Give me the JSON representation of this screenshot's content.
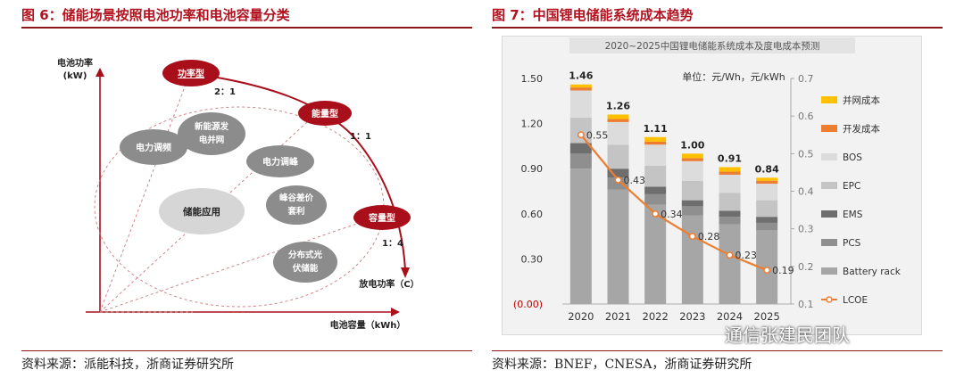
{
  "figure6": {
    "title": "图 6：储能场景按照电池功率和电池容量分类",
    "source": "资料来源：派能科技，浙商证券研究所",
    "y_axis_label_1": "电池功率",
    "y_axis_label_2": "(kW)",
    "x_axis_label": "电池容量（kWh）",
    "curve_label": "放电功率（C）",
    "types": [
      {
        "label": "功率型",
        "ratio": "2：1"
      },
      {
        "label": "能量型",
        "ratio": "1：1"
      },
      {
        "label": "容量型",
        "ratio": "1：4"
      }
    ],
    "applications": {
      "grid_frequency": "电力调频",
      "renewable_line1": "新能源发",
      "renewable_line2": "电并网",
      "peak_shaving": "电力调峰",
      "storage": "储能应用",
      "arbitrage_line1": "峰谷差价",
      "arbitrage_line2": "套利",
      "distributed_line1": "分布式光",
      "distributed_line2": "伏储能"
    },
    "colors": {
      "dark_red": "#a80f1b",
      "grey": "#8c8c8c",
      "light_grey": "#d6d6d6"
    }
  },
  "figure7": {
    "title": "图 7：中国锂电储能系统成本趋势",
    "source": "资料来源：BNEF，CNESA，浙商证券研究所",
    "inner_title": "2020~2025中国锂电储能系统成本及度电成本预测",
    "unit_label": "单位：元/Wh，元/kWh"
  },
  "watermark": "通信张建民团队",
  "chart_data": {
    "type": "bar",
    "title": "2020~2025中国锂电储能系统成本及度电成本预测",
    "categories": [
      "2020",
      "2021",
      "2022",
      "2023",
      "2024",
      "2025"
    ],
    "left_axis": {
      "ylim": [
        0,
        1.5
      ],
      "ticks": [
        "(0.00)",
        "0.30",
        "0.60",
        "0.90",
        "1.20",
        "1.50"
      ]
    },
    "right_axis": {
      "ylim": [
        0.1,
        0.7
      ],
      "ticks": [
        "0.1",
        "0.2",
        "0.3",
        "0.4",
        "0.5",
        "0.6",
        "0.7"
      ]
    },
    "series": [
      {
        "name": "Battery rack",
        "color": "#a6a6a6",
        "values": [
          0.9,
          0.76,
          0.66,
          0.59,
          0.53,
          0.49
        ]
      },
      {
        "name": "PCS",
        "color": "#8f8f8f",
        "values": [
          0.1,
          0.08,
          0.07,
          0.06,
          0.05,
          0.05
        ]
      },
      {
        "name": "EMS",
        "color": "#6e6e6e",
        "values": [
          0.07,
          0.06,
          0.05,
          0.04,
          0.04,
          0.04
        ]
      },
      {
        "name": "EPC",
        "color": "#c4c4c4",
        "values": [
          0.17,
          0.16,
          0.14,
          0.13,
          0.12,
          0.11
        ]
      },
      {
        "name": "BOS",
        "color": "#dcdcdc",
        "values": [
          0.18,
          0.15,
          0.14,
          0.13,
          0.12,
          0.11
        ]
      },
      {
        "name": "开发成本",
        "color": "#ed7d31",
        "values": [
          0.02,
          0.02,
          0.02,
          0.02,
          0.02,
          0.02
        ]
      },
      {
        "name": "并网成本",
        "color": "#ffc000",
        "values": [
          0.02,
          0.03,
          0.03,
          0.03,
          0.03,
          0.02
        ]
      }
    ],
    "totals": [
      "1.46",
      "1.26",
      "1.11",
      "1.00",
      "0.91",
      "0.84"
    ],
    "line": {
      "name": "LCOE",
      "color": "#ed7d31",
      "axis": "right",
      "values": [
        0.55,
        0.43,
        0.34,
        0.28,
        0.23,
        0.19
      ],
      "labels": [
        "0.55",
        "0.43",
        "0.34",
        "0.28",
        "0.23",
        "0.19"
      ]
    },
    "legend_order": [
      "并网成本",
      "开发成本",
      "BOS",
      "EPC",
      "EMS",
      "PCS",
      "Battery rack",
      "LCOE"
    ]
  }
}
